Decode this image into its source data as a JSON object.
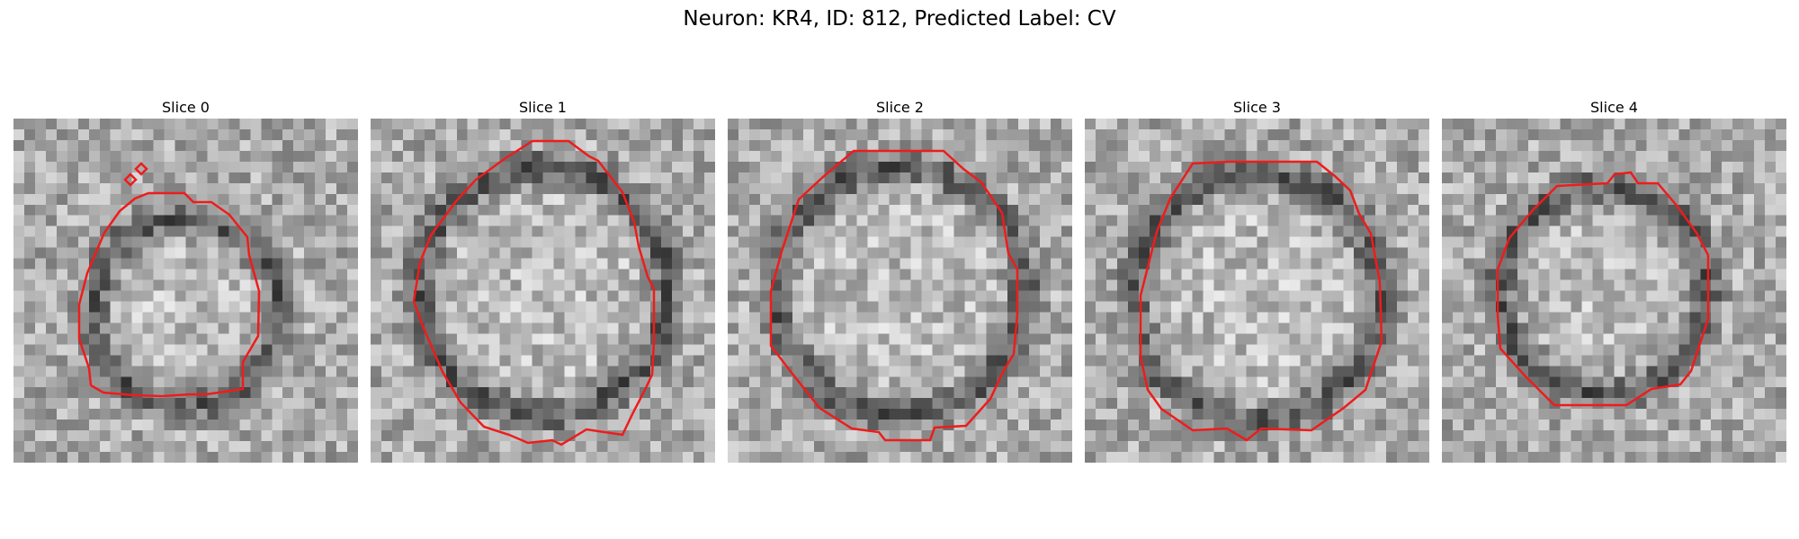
{
  "figure": {
    "title": "Neuron: KR4, ID: 812, Predicted Label: CV",
    "contour_color": "#ee1c1c",
    "grid_cells": 32
  },
  "slices": [
    {
      "title": "Slice 0"
    },
    {
      "title": "Slice 1"
    },
    {
      "title": "Slice 2"
    },
    {
      "title": "Slice 3"
    },
    {
      "title": "Slice 4"
    }
  ]
}
